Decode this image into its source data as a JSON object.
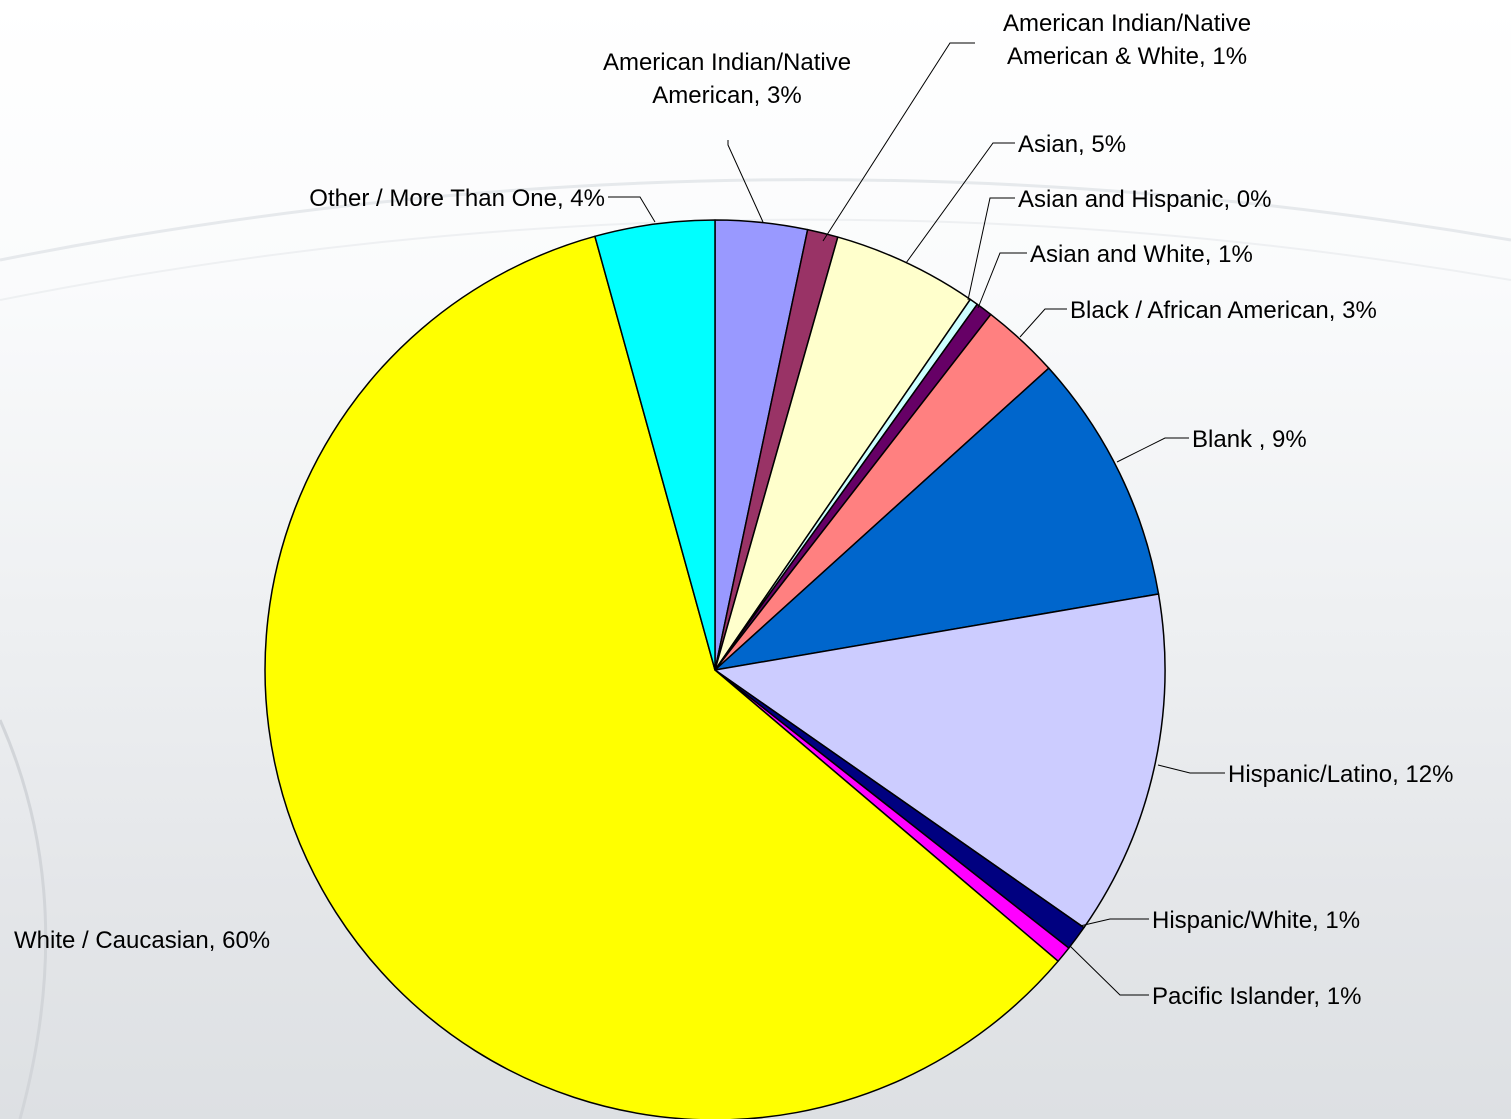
{
  "colors": {
    "outline": "#000000",
    "leader": "#000000",
    "label": "#000000"
  },
  "chart_data": {
    "type": "pie",
    "title": "",
    "start_angle_deg": 0,
    "direction": "clockwise",
    "slices": [
      {
        "name": "American Indian/Native American",
        "value": 3.3,
        "color": "#9999ff",
        "label": [
          "American Indian/Native",
          "American, 3%"
        ]
      },
      {
        "name": "American Indian/Native American & White",
        "value": 1.1,
        "color": "#993366",
        "label": [
          "American Indian/Native",
          "American & White, 1%"
        ]
      },
      {
        "name": "Asian",
        "value": 5.2,
        "color": "#ffffcc",
        "label": [
          "Asian, 5%"
        ]
      },
      {
        "name": "Asian and Hispanic",
        "value": 0.3,
        "color": "#ccffff",
        "label": [
          "Asian and Hispanic, 0%"
        ]
      },
      {
        "name": "Asian and White",
        "value": 0.6,
        "color": "#660066",
        "label": [
          "Asian and White, 1%"
        ]
      },
      {
        "name": "Black / African American",
        "value": 2.8,
        "color": "#ff8080",
        "label": [
          "Black / African American, 3%"
        ]
      },
      {
        "name": "Blank",
        "value": 9.0,
        "color": "#0066cc",
        "label": [
          "Blank , 9%"
        ]
      },
      {
        "name": "Hispanic/Latino",
        "value": 12.4,
        "color": "#ccccff",
        "label": [
          "Hispanic/Latino, 12%"
        ]
      },
      {
        "name": "Hispanic/White",
        "value": 0.9,
        "color": "#000080",
        "label": [
          "Hispanic/White, 1%"
        ]
      },
      {
        "name": "Pacific Islander",
        "value": 0.6,
        "color": "#ff00ff",
        "label": [
          "Pacific Islander, 1%"
        ]
      },
      {
        "name": "White / Caucasian",
        "value": 59.5,
        "color": "#ffff00",
        "label": [
          "White / Caucasian, 60%"
        ]
      },
      {
        "name": "Other / More Than One",
        "value": 4.3,
        "color": "#00ffff",
        "label": [
          "Other / More Than One, 4%"
        ]
      }
    ]
  }
}
